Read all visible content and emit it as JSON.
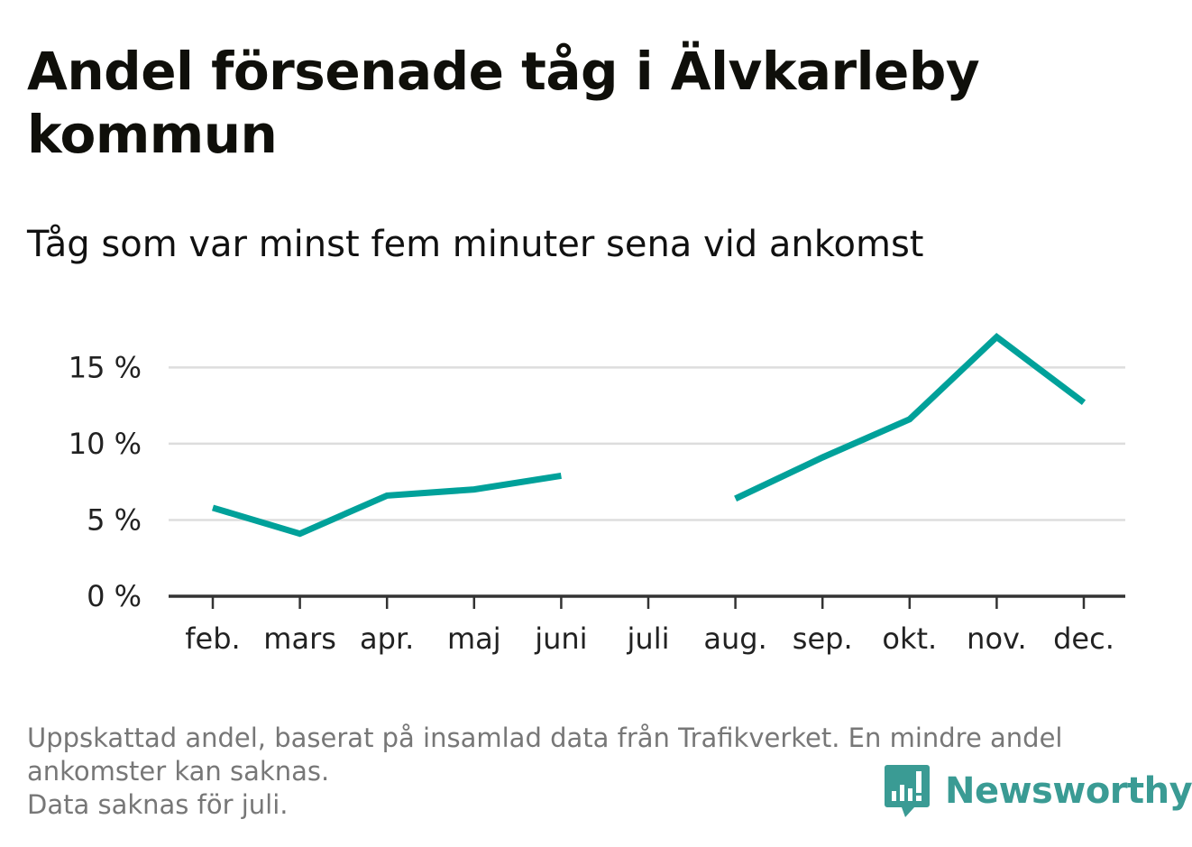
{
  "title": "Andel försenade tåg i Älvkarleby kommun",
  "subtitle": "Tåg som var minst fem minuter sena vid ankomst",
  "chart_data": {
    "type": "line",
    "categories": [
      "feb.",
      "mars",
      "apr.",
      "maj",
      "juni",
      "juli",
      "aug.",
      "sep.",
      "okt.",
      "nov.",
      "dec."
    ],
    "series": [
      {
        "values": [
          5.8,
          4.1,
          6.6,
          7.0,
          7.9,
          null,
          6.4,
          9.1,
          11.6,
          17.0,
          12.7
        ]
      }
    ],
    "yticks": [
      0,
      5,
      10,
      15
    ],
    "ytick_labels": [
      "0 %",
      "5 %",
      "10 %",
      "15 %"
    ],
    "ylim": [
      0,
      17.8
    ],
    "grid": true,
    "colors": {
      "line": "#00a19a",
      "grid": "#dddddd",
      "axis": "#333333"
    }
  },
  "footnote": {
    "line1": "Uppskattad andel, baserat på insamlad data från Trafikverket. En mindre andel",
    "line2": "ankomster kan saknas.",
    "line3": "Data saknas för juli."
  },
  "brand": {
    "name": "Newsworthy",
    "logo_icon": "newsworthy-logo-icon",
    "color": "#3a9b94"
  }
}
